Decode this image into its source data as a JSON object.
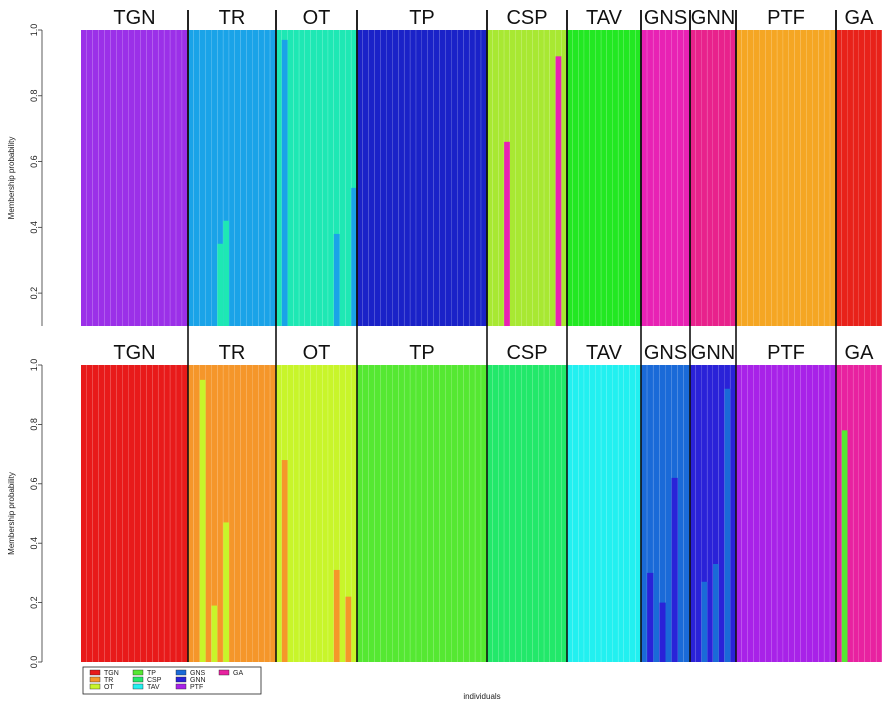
{
  "chart_data": [
    {
      "type": "bar",
      "subtype": "stacked-membership",
      "ylabel": "Membership probability",
      "xlabel": "",
      "ylim": [
        0.1,
        1.0
      ],
      "yticks": [
        "0.2",
        "0.4",
        "0.6",
        "0.8",
        "1.0"
      ],
      "group_labels": [
        "TGN",
        "TR",
        "OT",
        "TP",
        "CSP",
        "TAV",
        "GNS",
        "GNN",
        "PTF",
        "GA"
      ],
      "group_sizes": [
        18,
        15,
        14,
        22,
        14,
        13,
        8,
        8,
        17,
        8
      ],
      "group_colors": [
        "#9b30e8",
        "#1aa3e8",
        "#1ee8b4",
        "#1a22c8",
        "#a8e832",
        "#22e822",
        "#e822b4",
        "#e8228c",
        "#f5a623",
        "#e8221a"
      ],
      "anomalies": [
        {
          "group": 1,
          "index": 5,
          "split": 0.35,
          "color": "#1ee8b4"
        },
        {
          "group": 1,
          "index": 6,
          "split": 0.42,
          "color": "#1ee8b4"
        },
        {
          "group": 2,
          "index": 1,
          "split": 0.97,
          "color": "#1aa3e8"
        },
        {
          "group": 2,
          "index": 10,
          "split": 0.38,
          "color": "#1aa3e8"
        },
        {
          "group": 2,
          "index": 13,
          "split": 0.52,
          "color": "#1aa3e8"
        },
        {
          "group": 4,
          "index": 3,
          "split": 0.66,
          "color": "#e822b4"
        },
        {
          "group": 4,
          "index": 12,
          "split": 0.92,
          "color": "#e822b4"
        },
        {
          "group": 9,
          "index": 1,
          "split": 0.0,
          "color": "#a8e832"
        }
      ]
    },
    {
      "type": "bar",
      "subtype": "stacked-membership",
      "ylabel": "Membership probability",
      "xlabel": "individuals",
      "ylim": [
        0.0,
        1.0
      ],
      "yticks": [
        "0.0",
        "0.2",
        "0.4",
        "0.6",
        "0.8",
        "1.0"
      ],
      "group_labels": [
        "TGN",
        "TR",
        "OT",
        "TP",
        "CSP",
        "TAV",
        "GNS",
        "GNN",
        "PTF",
        "GA"
      ],
      "group_sizes": [
        18,
        15,
        14,
        22,
        14,
        13,
        8,
        8,
        17,
        8
      ],
      "group_colors": [
        "#e81a1a",
        "#f5962a",
        "#c8f52a",
        "#55e832",
        "#22e86a",
        "#22f0f0",
        "#1a6ad8",
        "#2a22d8",
        "#a822e8",
        "#e822a0"
      ],
      "anomalies": [
        {
          "group": 1,
          "index": 2,
          "split": 0.95,
          "color": "#c8f52a"
        },
        {
          "group": 1,
          "index": 4,
          "split": 0.19,
          "color": "#c8f52a"
        },
        {
          "group": 1,
          "index": 6,
          "split": 0.47,
          "color": "#c8f52a"
        },
        {
          "group": 2,
          "index": 1,
          "split": 0.68,
          "color": "#f5962a"
        },
        {
          "group": 2,
          "index": 10,
          "split": 0.31,
          "color": "#f5962a"
        },
        {
          "group": 2,
          "index": 12,
          "split": 0.22,
          "color": "#f5962a"
        },
        {
          "group": 6,
          "index": 1,
          "split": 0.3,
          "color": "#2a22d8"
        },
        {
          "group": 6,
          "index": 3,
          "split": 0.2,
          "color": "#2a22d8"
        },
        {
          "group": 6,
          "index": 5,
          "split": 0.62,
          "color": "#2a22d8"
        },
        {
          "group": 7,
          "index": 2,
          "split": 0.27,
          "color": "#1a6ad8"
        },
        {
          "group": 7,
          "index": 4,
          "split": 0.33,
          "color": "#1a6ad8"
        },
        {
          "group": 7,
          "index": 6,
          "split": 0.92,
          "color": "#1a6ad8"
        },
        {
          "group": 9,
          "index": 1,
          "split": 0.78,
          "color": "#55e832"
        }
      ]
    }
  ],
  "legend": {
    "entries": [
      {
        "label": "TGN",
        "color": "#e81a1a"
      },
      {
        "label": "TR",
        "color": "#f5962a"
      },
      {
        "label": "OT",
        "color": "#c8f52a"
      },
      {
        "label": "TP",
        "color": "#55e832"
      },
      {
        "label": "CSP",
        "color": "#22e86a"
      },
      {
        "label": "TAV",
        "color": "#22f0f0"
      },
      {
        "label": "GNS",
        "color": "#1a6ad8"
      },
      {
        "label": "GNN",
        "color": "#2a22d8"
      },
      {
        "label": "PTF",
        "color": "#a822e8"
      },
      {
        "label": "GA",
        "color": "#e822a0"
      }
    ]
  }
}
